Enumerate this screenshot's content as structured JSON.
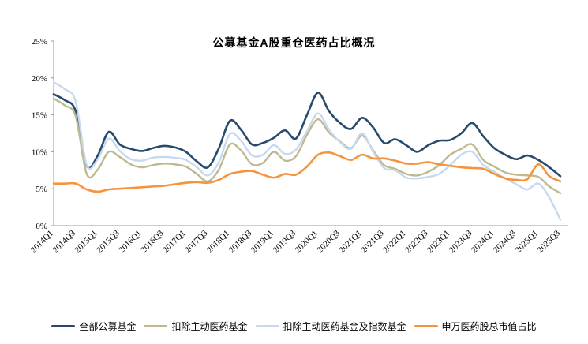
{
  "title": "公募基金A股重仓医药占比概况",
  "chart_data": {
    "type": "line",
    "title": "公募基金A股重仓医药占比概况",
    "xlabel": "",
    "ylabel": "",
    "ylim": [
      0,
      25
    ],
    "y_tick_labels": [
      "0%",
      "5%",
      "10%",
      "15%",
      "20%",
      "25%"
    ],
    "grid": false,
    "legend_position": "bottom",
    "line_style": "smooth",
    "axis_color": "#9b9b9b",
    "x": [
      "2014Q1",
      "2014Q2",
      "2014Q3",
      "2014Q4",
      "2015Q1",
      "2015Q2",
      "2015Q3",
      "2015Q4",
      "2016Q1",
      "2016Q2",
      "2016Q3",
      "2016Q4",
      "2017Q1",
      "2017Q2",
      "2017Q3",
      "2017Q4",
      "2018Q1",
      "2018Q2",
      "2018Q3",
      "2018Q4",
      "2019Q1",
      "2019Q2",
      "2019Q3",
      "2019Q4",
      "2020Q1",
      "2020Q2",
      "2020Q3",
      "2020Q4",
      "2021Q1",
      "2021Q2",
      "2021Q3",
      "2021Q4",
      "2022Q1",
      "2022Q2",
      "2022Q3",
      "2022Q4",
      "2023Q1",
      "2023Q2",
      "2023Q3",
      "2023Q4",
      "2024Q1",
      "2024Q2",
      "2024Q3",
      "2024Q4",
      "2025Q1",
      "2025Q2",
      "2025Q3"
    ],
    "x_tick_labels": [
      "2014Q1",
      "2014Q3",
      "2015Q1",
      "2015Q3",
      "2016Q1",
      "2016Q3",
      "2017Q1",
      "2017Q3",
      "2018Q1",
      "2018Q3",
      "2019Q1",
      "2019Q3",
      "2020Q1",
      "2020Q3",
      "2021Q1",
      "2021Q3",
      "2022Q1",
      "2022Q3",
      "2023Q1",
      "2023Q3",
      "2024Q1",
      "2024Q3",
      "2025Q1",
      "2025Q3"
    ],
    "series": [
      {
        "name": "全部公募基金",
        "color": "#274A6D",
        "width": 2.6,
        "values": [
          17.8,
          17.0,
          15.5,
          8.1,
          9.5,
          12.7,
          11.0,
          10.4,
          10.1,
          10.5,
          10.8,
          10.6,
          10.0,
          8.7,
          7.9,
          10.5,
          14.2,
          13.0,
          11.0,
          11.2,
          11.9,
          12.9,
          11.8,
          15.0,
          18.0,
          15.5,
          13.9,
          13.1,
          14.6,
          13.3,
          11.2,
          11.7,
          10.9,
          10.0,
          10.9,
          11.5,
          11.6,
          12.5,
          13.9,
          12.1,
          10.5,
          9.6,
          9.0,
          9.5,
          8.9,
          7.9,
          6.7
        ]
      },
      {
        "name": "扣除主动医药基金",
        "color": "#BFB98F",
        "width": 2.4,
        "values": [
          17.2,
          16.3,
          14.8,
          7.0,
          7.6,
          10.0,
          9.3,
          8.3,
          7.9,
          8.2,
          8.4,
          8.3,
          8.0,
          7.0,
          6.0,
          7.6,
          11.0,
          10.2,
          8.3,
          8.5,
          10.0,
          8.8,
          9.4,
          12.3,
          14.4,
          12.6,
          11.4,
          10.5,
          12.2,
          10.2,
          8.2,
          7.7,
          7.0,
          6.8,
          7.3,
          8.2,
          9.6,
          10.4,
          11.0,
          8.9,
          8.0,
          7.2,
          6.9,
          6.8,
          6.6,
          5.3,
          4.4
        ]
      },
      {
        "name": "扣除主动医药基金及指数基金",
        "color": "#C6D9F1",
        "width": 2.4,
        "values": [
          19.4,
          18.5,
          16.8,
          8.2,
          9.0,
          11.8,
          10.1,
          9.0,
          8.8,
          9.2,
          9.3,
          9.2,
          8.9,
          7.9,
          6.8,
          8.6,
          12.4,
          11.5,
          9.5,
          9.6,
          10.9,
          9.7,
          10.3,
          12.8,
          15.2,
          13.0,
          11.3,
          10.4,
          12.5,
          10.0,
          7.8,
          7.5,
          6.5,
          6.4,
          6.6,
          7.0,
          8.2,
          9.6,
          10.0,
          8.2,
          7.3,
          6.4,
          5.6,
          4.9,
          5.7,
          3.8,
          0.8
        ]
      },
      {
        "name": "申万医药股总市值占比",
        "color": "#F6933D",
        "width": 2.6,
        "values": [
          5.7,
          5.7,
          5.7,
          4.9,
          4.6,
          4.9,
          5.0,
          5.1,
          5.2,
          5.3,
          5.4,
          5.6,
          5.8,
          5.9,
          5.8,
          6.2,
          7.0,
          7.3,
          7.4,
          6.9,
          6.5,
          7.0,
          6.9,
          8.0,
          9.6,
          9.9,
          9.4,
          8.9,
          9.6,
          9.1,
          9.1,
          8.8,
          8.4,
          8.4,
          8.6,
          8.3,
          8.1,
          7.9,
          7.8,
          7.7,
          7.0,
          6.4,
          6.2,
          6.3,
          8.3,
          6.7,
          6.0
        ]
      }
    ]
  }
}
